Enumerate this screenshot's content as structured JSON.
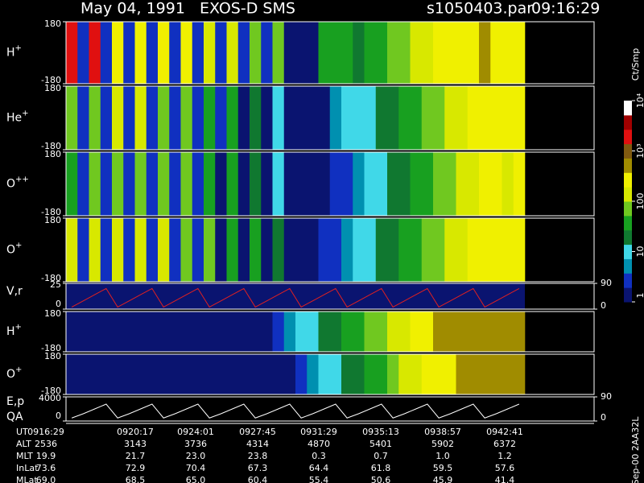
{
  "header": {
    "title": "May 04, 1991   EXOS-D SMS",
    "file": "s1050403.par",
    "time": "09:16:29"
  },
  "footer_note": "Sep-00 2AA32L",
  "colorbar": {
    "label": "Ct/Smp",
    "lim": [
      1,
      10000
    ],
    "ticks": [
      {
        "value": 1,
        "label": "1"
      },
      {
        "value": 10,
        "label": "10"
      },
      {
        "value": 100,
        "label": "100"
      },
      {
        "value": 1000,
        "label": "10³"
      },
      {
        "value": 10000,
        "label": "10⁴"
      }
    ],
    "colors": [
      "#0a1470",
      "#1030c0",
      "#0090b0",
      "#40d8e8",
      "#107830",
      "#18a020",
      "#70c820",
      "#d8e800",
      "#f0f000",
      "#a08c00",
      "#805a10",
      "#e01010",
      "#a00000",
      "#ffffff"
    ]
  },
  "spectrograms": [
    {
      "label": "H",
      "charge": "+",
      "yticks": [
        180,
        -180
      ],
      "levels": [
        1500,
        3,
        1500,
        3,
        300,
        3,
        300,
        3,
        200,
        3,
        200,
        3,
        150,
        2,
        100,
        2,
        80,
        2,
        60,
        1,
        1,
        1,
        40,
        40,
        30,
        20,
        30,
        50,
        60,
        80,
        100,
        150,
        200,
        300,
        200,
        300,
        400,
        200,
        300,
        200
      ]
    },
    {
      "label": "He",
      "charge": "+",
      "yticks": [
        180,
        -180
      ],
      "levels": [
        60,
        2,
        80,
        2,
        100,
        2,
        100,
        2,
        80,
        2,
        60,
        2,
        40,
        2,
        30,
        1,
        20,
        1,
        10,
        1,
        1,
        1,
        1,
        5,
        8,
        10,
        12,
        15,
        20,
        30,
        40,
        60,
        80,
        100,
        150,
        200,
        200,
        300,
        200,
        250
      ]
    },
    {
      "label": "O",
      "charge": "++",
      "yticks": [
        180,
        -180
      ],
      "levels": [
        40,
        2,
        60,
        2,
        80,
        2,
        80,
        2,
        60,
        2,
        60,
        2,
        40,
        1,
        30,
        1,
        20,
        1,
        10,
        1,
        1,
        1,
        1,
        2,
        3,
        5,
        8,
        10,
        15,
        20,
        30,
        40,
        60,
        80,
        100,
        150,
        200,
        200,
        150,
        200
      ]
    },
    {
      "label": "O",
      "charge": "+",
      "yticks": [
        180,
        -180
      ],
      "levels": [
        150,
        2,
        150,
        2,
        120,
        2,
        120,
        2,
        100,
        2,
        80,
        2,
        60,
        1,
        40,
        1,
        30,
        1,
        20,
        1,
        1,
        1,
        2,
        3,
        5,
        8,
        10,
        15,
        20,
        30,
        40,
        60,
        80,
        100,
        150,
        200,
        250,
        300,
        250,
        300
      ]
    },
    {
      "label": "H",
      "charge": "+",
      "yticks": [
        180,
        -180
      ],
      "levels": [
        1,
        1,
        1,
        1,
        1,
        1,
        1,
        1,
        1,
        1,
        1,
        1,
        1,
        1,
        1,
        1,
        1,
        1,
        3,
        5,
        8,
        10,
        15,
        20,
        30,
        40,
        60,
        80,
        100,
        150,
        200,
        300,
        400,
        500,
        500,
        500,
        500,
        500,
        500,
        500
      ]
    },
    {
      "label": "O",
      "charge": "+",
      "yticks": [
        180,
        -180
      ],
      "levels": [
        1,
        1,
        1,
        1,
        1,
        1,
        1,
        1,
        1,
        1,
        1,
        1,
        1,
        1,
        1,
        1,
        1,
        1,
        1,
        1,
        3,
        5,
        8,
        10,
        15,
        20,
        30,
        50,
        80,
        100,
        150,
        200,
        200,
        300,
        400,
        500,
        600,
        600,
        600,
        600
      ]
    }
  ],
  "lines": [
    {
      "label": "V,r",
      "color": "#e02020",
      "ylim": [
        0,
        25
      ],
      "yticks": [
        25,
        0
      ],
      "y2ticks": [
        90,
        0
      ],
      "values": [
        2,
        8,
        14,
        20,
        2,
        8,
        14,
        20,
        2,
        8,
        14,
        20,
        2,
        8,
        14,
        20,
        2,
        8,
        14,
        20,
        2,
        8,
        14,
        20,
        2,
        8,
        14,
        20,
        2,
        8,
        14,
        20,
        2,
        8,
        14,
        20,
        2,
        8,
        14,
        20
      ]
    },
    {
      "label": "E,p",
      "label2": "QA",
      "color": "#ffffff",
      "ylim": [
        0,
        4000
      ],
      "yticks": [
        4000,
        0
      ],
      "y2ticks": [
        90,
        0
      ],
      "values": [
        500,
        1200,
        2000,
        2800,
        500,
        1200,
        2000,
        2800,
        500,
        1200,
        2000,
        2800,
        500,
        1200,
        2000,
        2800,
        500,
        1200,
        2000,
        2800,
        500,
        1200,
        2000,
        2800,
        500,
        1200,
        2000,
        2800,
        500,
        1200,
        2000,
        2800,
        500,
        1200,
        2000,
        2800,
        500,
        1200,
        2000,
        2800
      ]
    }
  ],
  "table": {
    "rows": [
      [
        "UT",
        "0916:29",
        "0920:17",
        "0924:01",
        "0927:45",
        "0931:29",
        "0935:13",
        "0938:57",
        "0942:41"
      ],
      [
        "ALT",
        "2536",
        "3143",
        "3736",
        "4314",
        "4870",
        "5401",
        "5902",
        "6372"
      ],
      [
        "MLT",
        "19.9",
        "21.7",
        "23.0",
        "23.8",
        "0.3",
        "0.7",
        "1.0",
        "1.2"
      ],
      [
        "InLat",
        "73.6",
        "72.9",
        "70.4",
        "67.3",
        "64.4",
        "61.8",
        "59.5",
        "57.6"
      ],
      [
        "MLat",
        "69.0",
        "68.5",
        "65.0",
        "60.4",
        "55.4",
        "50.6",
        "45.9",
        "41.4"
      ]
    ]
  }
}
